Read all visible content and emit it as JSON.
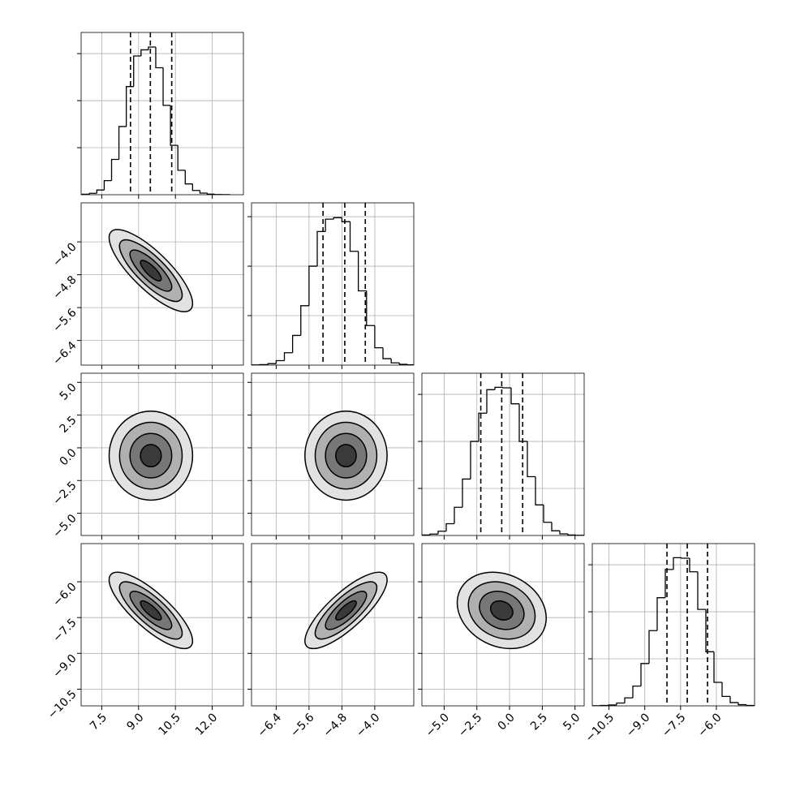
{
  "chart_data": {
    "type": "corner",
    "grid": true,
    "contour_levels": [
      0.5,
      1,
      1.5,
      2
    ],
    "variables": [
      {
        "lim": [
          6.66,
          13.27
        ],
        "ticks": [
          7.5,
          {
            "value": 9.0,
            "label": "9.0"
          },
          10.5,
          {
            "value": 12.0,
            "label": "12.0"
          }
        ],
        "mean": 9.5,
        "std": 0.85,
        "quantiles": [
          8.67,
          9.48,
          10.35
        ],
        "bins": [
          6.7,
          7.0,
          7.3,
          7.6,
          7.9,
          8.2,
          8.5,
          8.8,
          9.1,
          9.4,
          9.7,
          10.0,
          10.3,
          10.6,
          10.9,
          11.2,
          11.5,
          11.8,
          12.1,
          12.4,
          12.7
        ],
        "counts": [
          10,
          30,
          100,
          300,
          750,
          1450,
          2300,
          2950,
          3080,
          3140,
          2700,
          1900,
          1050,
          520,
          230,
          90,
          35,
          12,
          4,
          1
        ],
        "hist_ylim": [
          0,
          3450
        ],
        "hist_yticks": [
          1000,
          2000,
          3000
        ]
      },
      {
        "lim": [
          -7.0,
          -3.05
        ],
        "ticks": [
          {
            "value": -6.4,
            "label": "−6.4"
          },
          {
            "value": -5.6,
            "label": "−5.6"
          },
          {
            "value": -4.8,
            "label": "−4.8"
          },
          {
            "value": -4.0,
            "label": "−4.0"
          }
        ],
        "mean": -4.7,
        "std": 0.5,
        "quantiles": [
          -5.26,
          -4.73,
          -4.23
        ],
        "bins": [
          -7.0,
          -6.8,
          -6.6,
          -6.4,
          -6.2,
          -6.0,
          -5.8,
          -5.6,
          -5.4,
          -5.2,
          -5.0,
          -4.8,
          -4.6,
          -4.4,
          -4.2,
          -4.0,
          -3.8,
          -3.6,
          -3.4,
          -3.2,
          -3.0
        ],
        "counts": [
          3,
          10,
          30,
          90,
          250,
          600,
          1200,
          2000,
          2700,
          2950,
          2980,
          2900,
          2300,
          1500,
          800,
          350,
          130,
          45,
          15,
          5
        ],
        "hist_ylim": [
          0,
          3280
        ],
        "hist_yticks": [
          1000,
          2000,
          3000
        ]
      },
      {
        "lim": [
          -6.7,
          5.7
        ],
        "ticks": [
          {
            "value": -5.0,
            "label": "−5.0"
          },
          {
            "value": -2.5,
            "label": "−2.5"
          },
          {
            "value": 0.0,
            "label": "0.0"
          },
          2.5,
          {
            "value": 5.0,
            "label": "5.0"
          }
        ],
        "mean": -0.6,
        "std": 1.7,
        "quantiles": [
          -2.2,
          -0.6,
          1.0
        ],
        "bins": [
          -6.7,
          -6.08,
          -5.46,
          -4.84,
          -4.22,
          -3.6,
          -2.98,
          -2.36,
          -1.74,
          -1.12,
          -0.5,
          0.12,
          0.74,
          1.36,
          1.98,
          2.6,
          3.22,
          3.84,
          4.46,
          5.08,
          5.7
        ],
        "counts": [
          10,
          30,
          90,
          250,
          600,
          1200,
          2000,
          2600,
          3100,
          3150,
          3140,
          2800,
          2000,
          1250,
          650,
          280,
          100,
          35,
          10,
          3
        ],
        "hist_ylim": [
          0,
          3450
        ],
        "hist_yticks": [
          1000,
          2000,
          3000
        ]
      },
      {
        "lim": [
          -11.2,
          -4.4
        ],
        "ticks": [
          {
            "value": -10.5,
            "label": "−10.5"
          },
          {
            "value": -9.0,
            "label": "−9.0"
          },
          {
            "value": -7.5,
            "label": "−7.5"
          },
          {
            "value": -6.0,
            "label": "−6.0"
          }
        ],
        "mean": -7.2,
        "std": 0.8,
        "quantiles": [
          -8.07,
          -7.22,
          -6.37
        ],
        "bins": [
          -11.2,
          -10.86,
          -10.52,
          -10.18,
          -9.84,
          -9.5,
          -9.16,
          -8.82,
          -8.48,
          -8.14,
          -7.8,
          -7.46,
          -7.12,
          -6.78,
          -6.44,
          -6.1,
          -5.76,
          -5.42,
          -5.08,
          -4.74,
          -4.4
        ],
        "counts": [
          2,
          8,
          20,
          60,
          170,
          420,
          900,
          1600,
          2300,
          2900,
          3150,
          3140,
          2850,
          2050,
          1150,
          500,
          200,
          70,
          25,
          8
        ],
        "hist_ylim": [
          0,
          3450
        ],
        "hist_yticks": [
          1000,
          2000,
          3000
        ]
      }
    ],
    "correlation": [
      [
        1,
        -0.8,
        0,
        -0.8
      ],
      [
        -0.8,
        1,
        0,
        0.8
      ],
      [
        0,
        0,
        1,
        -0.2
      ],
      [
        -0.8,
        0.8,
        -0.2,
        1
      ]
    ]
  }
}
